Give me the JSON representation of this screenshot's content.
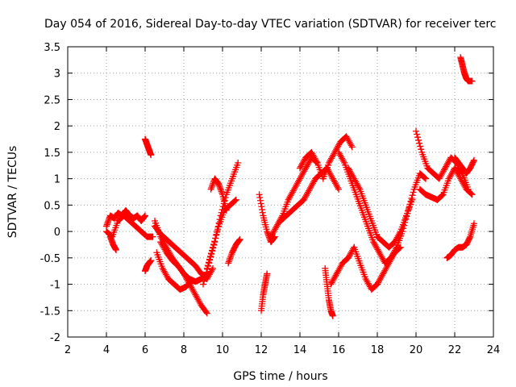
{
  "chart_data": {
    "type": "scatter",
    "title": "Day 054 of 2016, Sidereal Day-to-day VTEC variation (SDTVAR) for receiver terc",
    "xlabel": "GPS time / hours",
    "ylabel": "SDTVAR / TECUs",
    "xlim": [
      2,
      24
    ],
    "ylim": [
      -2,
      3.5
    ],
    "xticks": [
      "2",
      "4",
      "6",
      "8",
      "10",
      "12",
      "14",
      "16",
      "18",
      "20",
      "22",
      "24"
    ],
    "yticks": [
      "-2",
      "-1.5",
      "-1",
      "-0.5",
      "0",
      "0.5",
      "1",
      "1.5",
      "2",
      "2.5",
      "3",
      "3.5"
    ],
    "grid": true,
    "marker": "plus",
    "color": "#ff0000",
    "series": [
      {
        "name": "s1",
        "x": [
          4.0,
          4.2,
          4.4,
          4.6,
          4.8,
          5.0,
          5.2,
          5.4,
          5.6,
          5.8,
          6.0
        ],
        "values": [
          0.1,
          0.3,
          0.25,
          0.35,
          0.3,
          0.4,
          0.3,
          0.25,
          0.3,
          0.2,
          0.3
        ]
      },
      {
        "name": "s2",
        "x": [
          4.0,
          4.3,
          4.6,
          4.9,
          5.2,
          5.5,
          5.8,
          6.1,
          6.4
        ],
        "values": [
          0.0,
          -0.1,
          0.2,
          0.3,
          0.2,
          0.1,
          0.0,
          -0.1,
          -0.1
        ]
      },
      {
        "name": "s3",
        "x": [
          4.2,
          4.35,
          4.5
        ],
        "values": [
          -0.1,
          -0.25,
          -0.35
        ]
      },
      {
        "name": "s4",
        "x": [
          6.0,
          6.1,
          6.2,
          6.3
        ],
        "values": [
          1.75,
          1.65,
          1.55,
          1.45
        ]
      },
      {
        "name": "s5",
        "x": [
          6.0,
          6.1,
          6.2,
          6.3
        ],
        "values": [
          -0.75,
          -0.65,
          -0.6,
          -0.55
        ]
      },
      {
        "name": "s6",
        "x": [
          6.5,
          6.8,
          7.1,
          7.4,
          7.7,
          8.0,
          8.3,
          8.6,
          8.9,
          9.2
        ],
        "values": [
          0.2,
          -0.1,
          -0.3,
          -0.5,
          -0.65,
          -0.8,
          -0.9,
          -0.95,
          -0.9,
          -0.8
        ]
      },
      {
        "name": "s7",
        "x": [
          6.6,
          6.9,
          7.2,
          7.5,
          7.8,
          8.1,
          8.4
        ],
        "values": [
          -0.4,
          -0.7,
          -0.9,
          -1.0,
          -1.1,
          -1.05,
          -0.95
        ]
      },
      {
        "name": "s8",
        "x": [
          6.8,
          7.1,
          7.4,
          7.7,
          8.0,
          8.3,
          8.6,
          8.9,
          9.2
        ],
        "values": [
          -0.2,
          -0.4,
          -0.55,
          -0.65,
          -0.8,
          -1.0,
          -1.2,
          -1.4,
          -1.55
        ]
      },
      {
        "name": "s9",
        "x": [
          6.5,
          6.8,
          7.1,
          7.4,
          7.7,
          8.0,
          8.3,
          8.6,
          8.9,
          9.2,
          9.5
        ],
        "values": [
          0.1,
          -0.05,
          -0.15,
          -0.25,
          -0.35,
          -0.45,
          -0.55,
          -0.65,
          -0.8,
          -0.9,
          -0.7
        ]
      },
      {
        "name": "s10",
        "x": [
          9.0,
          9.3,
          9.6,
          9.9,
          10.2,
          10.5,
          10.8
        ],
        "values": [
          -1.0,
          -0.6,
          -0.2,
          0.3,
          0.7,
          1.0,
          1.3
        ]
      },
      {
        "name": "s11",
        "x": [
          9.2,
          9.5,
          9.8,
          10.1,
          10.4,
          10.7
        ],
        "values": [
          -0.7,
          -0.3,
          0.1,
          0.4,
          0.5,
          0.6
        ]
      },
      {
        "name": "s12",
        "x": [
          9.4,
          9.6,
          9.8,
          10.0,
          10.2
        ],
        "values": [
          0.8,
          1.0,
          0.9,
          0.7,
          0.4
        ]
      },
      {
        "name": "s13",
        "x": [
          10.3,
          10.5,
          10.7,
          10.9
        ],
        "values": [
          -0.6,
          -0.4,
          -0.25,
          -0.15
        ]
      },
      {
        "name": "s14",
        "x": [
          11.9,
          12.1,
          12.3,
          12.5,
          12.7
        ],
        "values": [
          0.7,
          0.3,
          0.0,
          -0.2,
          -0.1
        ]
      },
      {
        "name": "s15",
        "x": [
          12.0,
          12.1,
          12.2,
          12.3
        ],
        "values": [
          -1.5,
          -1.2,
          -1.0,
          -0.8
        ]
      },
      {
        "name": "s16",
        "x": [
          12.5,
          12.8,
          13.1,
          13.4,
          13.7,
          14.0,
          14.3,
          14.6,
          14.9
        ],
        "values": [
          -0.1,
          0.1,
          0.3,
          0.6,
          0.8,
          1.0,
          1.2,
          1.4,
          1.3
        ]
      },
      {
        "name": "s17",
        "x": [
          13.0,
          13.3,
          13.6,
          13.9,
          14.2,
          14.5,
          14.8,
          15.1,
          15.4,
          15.7,
          16.0
        ],
        "values": [
          0.2,
          0.3,
          0.4,
          0.5,
          0.6,
          0.8,
          1.0,
          1.1,
          1.2,
          1.0,
          0.8
        ]
      },
      {
        "name": "s18",
        "x": [
          14.0,
          14.3,
          14.6,
          14.9,
          15.2,
          15.5,
          15.8,
          16.1,
          16.4,
          16.7
        ],
        "values": [
          1.2,
          1.4,
          1.5,
          1.3,
          1.0,
          1.3,
          1.5,
          1.7,
          1.8,
          1.6
        ]
      },
      {
        "name": "s19",
        "x": [
          15.3,
          15.4,
          15.5,
          15.6,
          15.7
        ],
        "values": [
          -0.7,
          -1.0,
          -1.3,
          -1.5,
          -1.6
        ]
      },
      {
        "name": "s20",
        "x": [
          15.6,
          15.9,
          16.2,
          16.5,
          16.8
        ],
        "values": [
          -1.0,
          -0.8,
          -0.6,
          -0.5,
          -0.3
        ]
      },
      {
        "name": "s21",
        "x": [
          16.0,
          16.3,
          16.6,
          16.9,
          17.2,
          17.5,
          17.8,
          18.1,
          18.4,
          18.7,
          19.0
        ],
        "values": [
          1.5,
          1.3,
          1.0,
          0.7,
          0.4,
          0.1,
          -0.2,
          -0.4,
          -0.6,
          -0.5,
          -0.3
        ]
      },
      {
        "name": "s22",
        "x": [
          16.5,
          16.8,
          17.1,
          17.4,
          17.7,
          18.0,
          18.3,
          18.6,
          18.9,
          19.2,
          19.5,
          19.8
        ],
        "values": [
          1.2,
          1.0,
          0.8,
          0.5,
          0.2,
          -0.1,
          -0.2,
          -0.3,
          -0.2,
          0.0,
          0.3,
          0.6
        ]
      },
      {
        "name": "s23",
        "x": [
          16.8,
          17.1,
          17.4,
          17.7,
          18.0,
          18.3,
          18.6,
          18.9,
          19.2
        ],
        "values": [
          -0.3,
          -0.6,
          -0.9,
          -1.1,
          -1.0,
          -0.8,
          -0.6,
          -0.4,
          -0.3
        ]
      },
      {
        "name": "s24",
        "x": [
          19.0,
          19.3,
          19.6,
          19.9,
          20.2,
          20.5
        ],
        "values": [
          -0.3,
          0.0,
          0.4,
          0.8,
          1.1,
          1.0
        ]
      },
      {
        "name": "s25",
        "x": [
          20.0,
          20.3,
          20.6,
          20.9,
          21.2,
          21.5,
          21.8,
          22.1,
          22.4,
          22.7
        ],
        "values": [
          1.9,
          1.5,
          1.2,
          1.1,
          1.0,
          1.2,
          1.4,
          1.3,
          1.1,
          0.8
        ]
      },
      {
        "name": "s26",
        "x": [
          20.2,
          20.5,
          20.8,
          21.1,
          21.4,
          21.7,
          22.0,
          22.3,
          22.6,
          22.9
        ],
        "values": [
          0.8,
          0.7,
          0.65,
          0.6,
          0.7,
          1.0,
          1.2,
          1.0,
          0.8,
          0.7
        ]
      },
      {
        "name": "s27",
        "x": [
          21.6,
          21.8,
          22.0,
          22.2,
          22.4,
          22.6,
          22.8,
          23.0
        ],
        "values": [
          -0.5,
          -0.45,
          -0.35,
          -0.3,
          -0.3,
          -0.25,
          -0.1,
          0.15
        ]
      },
      {
        "name": "s28",
        "x": [
          22.3,
          22.4,
          22.5,
          22.6,
          22.7,
          22.9
        ],
        "values": [
          3.3,
          3.15,
          3.0,
          2.9,
          2.85,
          2.85
        ]
      },
      {
        "name": "s29",
        "x": [
          22.0,
          22.2,
          22.4,
          22.6,
          22.8,
          23.0
        ],
        "values": [
          1.4,
          1.3,
          1.2,
          1.1,
          1.2,
          1.35
        ]
      }
    ]
  }
}
